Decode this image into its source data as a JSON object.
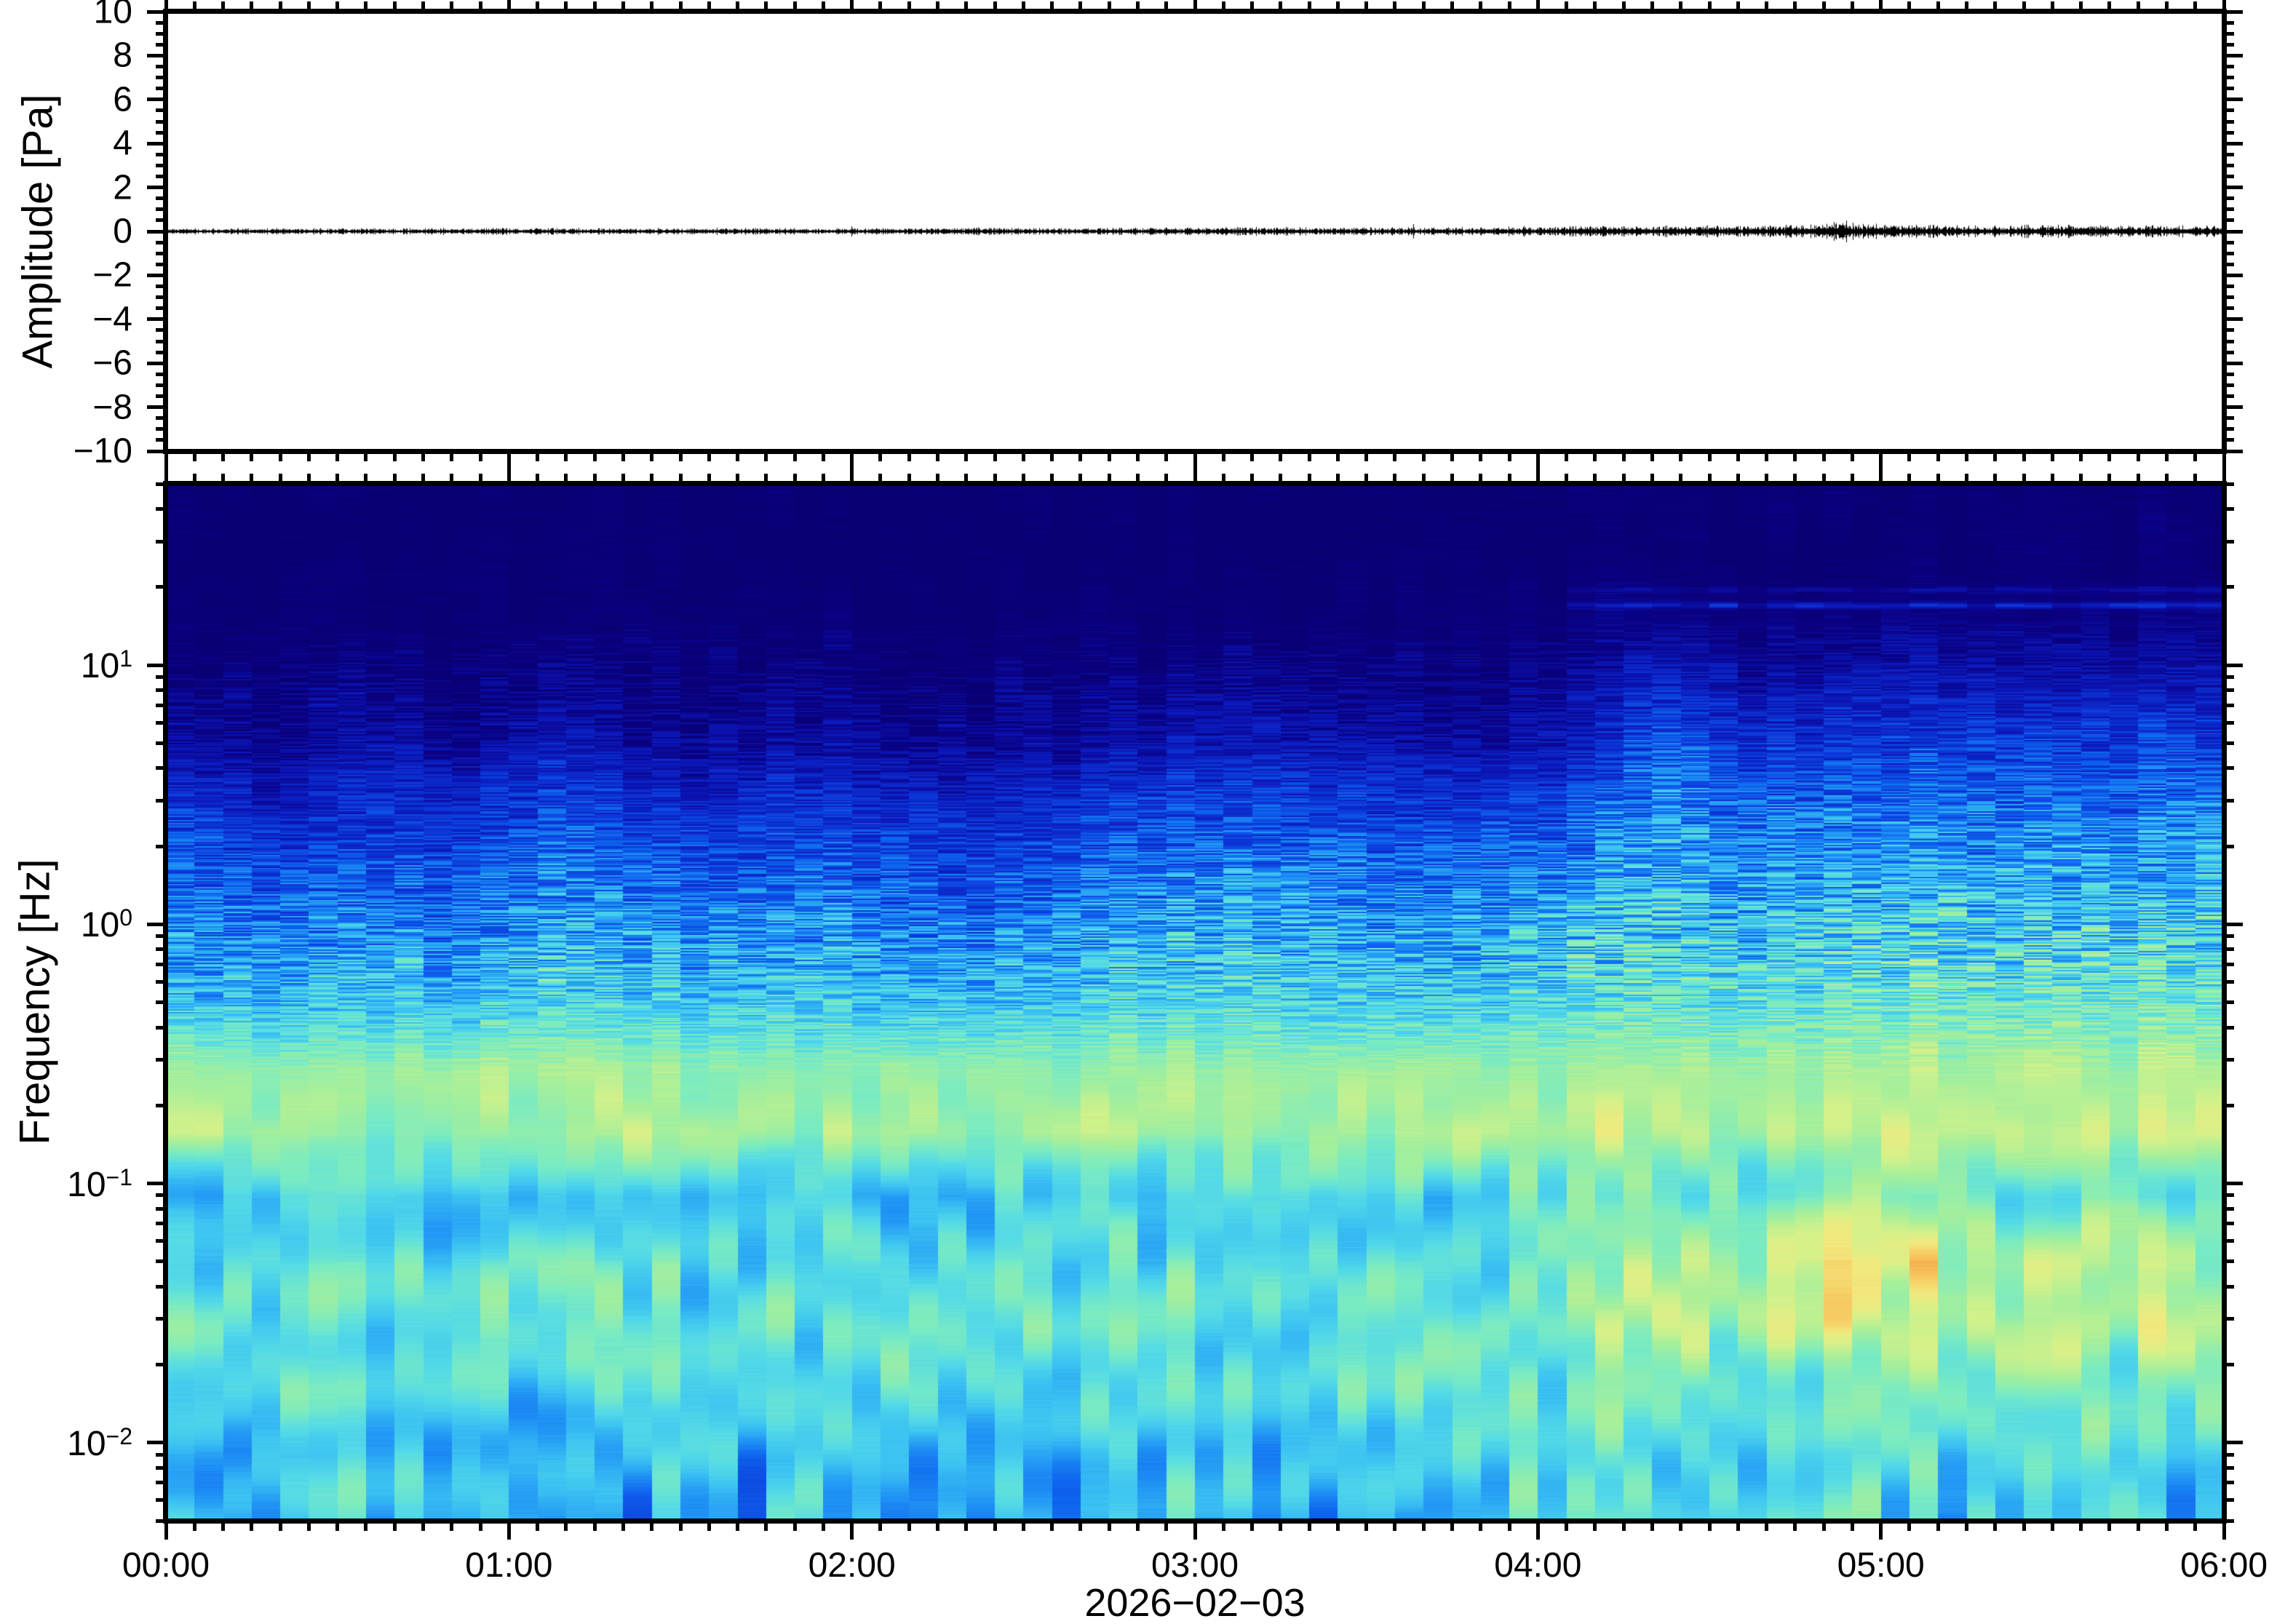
{
  "figure": {
    "top_panel": {
      "ylabel": "Amplitude [Pa]",
      "ylim": [
        -10,
        10
      ],
      "y_major_step": 2,
      "y_minor_step": 0.5,
      "y_tick_labels": [
        "10",
        "8",
        "6",
        "4",
        "2",
        "0",
        "−2",
        "−4",
        "−6",
        "−8",
        "−10"
      ]
    },
    "bottom_panel": {
      "ylabel": "Frequency [Hz]",
      "y_tick_base": "10",
      "y_tick_exponents": [
        "1",
        "0",
        "−1",
        "−2"
      ],
      "freq_range_hz": [
        0.005,
        50
      ]
    },
    "x_axis": {
      "tick_labels": [
        "00:00",
        "01:00",
        "02:00",
        "03:00",
        "04:00",
        "05:00",
        "06:00"
      ],
      "minor_step_minutes": 5,
      "date_label": "2026−02−03"
    }
  },
  "chart_data": [
    {
      "type": "line",
      "name": "pressure-waveform",
      "ylabel": "Amplitude [Pa]",
      "ylim": [
        -10,
        10
      ],
      "x_range_hours": [
        0,
        6
      ],
      "mean_pa": 0,
      "envelope_pa_15min": [
        0.07,
        0.08,
        0.07,
        0.08,
        0.08,
        0.07,
        0.08,
        0.07,
        0.08,
        0.09,
        0.08,
        0.09,
        0.1,
        0.1,
        0.09,
        0.1,
        0.12,
        0.14,
        0.13,
        0.2,
        0.16,
        0.13,
        0.16,
        0.14
      ],
      "bursts": [
        {
          "hour": 3.95,
          "peak_pa": 0.12
        },
        {
          "hour": 4.88,
          "peak_pa": 0.28
        },
        {
          "hour": 5.42,
          "peak_pa": 0.18
        }
      ],
      "line_color": "#000000"
    },
    {
      "type": "heatmap",
      "name": "spectrogram",
      "ylabel": "Frequency [Hz]",
      "xlabel": "2026−02−03",
      "x_range_hours": [
        0,
        6
      ],
      "freq_range_hz": [
        0.005,
        50
      ],
      "column_width_minutes": 5,
      "time_bin_hours": [
        0,
        0.25,
        0.5,
        0.75,
        1,
        1.25,
        1.5,
        1.75,
        2,
        2.25,
        2.5,
        2.75,
        3,
        3.25,
        3.5,
        3.75,
        4,
        4.25,
        4.5,
        4.75,
        5,
        5.25,
        5.5,
        5.75
      ],
      "freq_bands_hz": [
        0.005,
        0.009,
        0.016,
        0.028,
        0.05,
        0.089,
        0.158,
        0.28,
        0.5,
        0.89,
        1.58,
        2.8,
        5.0,
        8.9,
        15.8,
        28
      ],
      "power_scale": [
        0,
        10
      ],
      "power_grid": [
        [
          5.6,
          5.3,
          6.0,
          6.4,
          5.9,
          5.3,
          7.9,
          7.4,
          5.3,
          4.4,
          3.6,
          2.5,
          1.3,
          0.7,
          0.45,
          0.3
        ],
        [
          4.7,
          5.0,
          6.4,
          6.7,
          6.1,
          5.2,
          7.6,
          7.1,
          5.1,
          4.0,
          3.0,
          2.0,
          1.0,
          0.6,
          0.4,
          0.3
        ],
        [
          5.3,
          5.7,
          6.2,
          6.0,
          5.7,
          5.5,
          7.4,
          7.2,
          5.4,
          4.4,
          3.5,
          2.6,
          1.5,
          0.8,
          0.45,
          0.3
        ],
        [
          5.9,
          5.3,
          5.7,
          6.6,
          6.2,
          5.3,
          7.3,
          7.3,
          5.2,
          4.2,
          3.2,
          2.2,
          1.1,
          0.6,
          0.4,
          0.3
        ],
        [
          4.5,
          4.9,
          5.4,
          6.2,
          6.0,
          5.6,
          7.5,
          7.4,
          5.7,
          5.0,
          4.2,
          3.1,
          1.7,
          0.9,
          0.5,
          0.3
        ],
        [
          5.5,
          5.8,
          6.4,
          6.3,
          5.9,
          5.4,
          7.8,
          7.2,
          5.5,
          4.6,
          3.6,
          2.4,
          1.2,
          0.7,
          0.4,
          0.3
        ],
        [
          5.1,
          5.4,
          6.0,
          6.1,
          5.8,
          5.3,
          7.3,
          7.1,
          5.3,
          4.3,
          3.3,
          2.3,
          1.2,
          0.6,
          0.4,
          0.3
        ],
        [
          5.7,
          5.9,
          6.2,
          6.4,
          6.0,
          5.5,
          7.4,
          7.2,
          5.6,
          4.7,
          3.7,
          2.7,
          1.5,
          0.8,
          0.45,
          0.3
        ],
        [
          5.3,
          5.6,
          6.6,
          6.8,
          6.2,
          5.4,
          7.7,
          7.3,
          5.4,
          4.5,
          3.4,
          2.4,
          1.3,
          0.7,
          0.4,
          0.3
        ],
        [
          4.9,
          5.2,
          5.9,
          6.2,
          5.9,
          5.3,
          7.2,
          7.0,
          5.2,
          4.1,
          3.1,
          2.1,
          1.1,
          0.6,
          0.4,
          0.3
        ],
        [
          4.3,
          4.7,
          5.6,
          6.4,
          6.1,
          5.6,
          7.5,
          7.2,
          5.5,
          4.6,
          3.6,
          2.5,
          1.3,
          0.7,
          0.4,
          0.3
        ],
        [
          5.1,
          5.5,
          6.2,
          6.5,
          6.0,
          5.4,
          7.6,
          7.4,
          5.7,
          4.9,
          4.0,
          2.9,
          1.6,
          0.8,
          0.45,
          0.3
        ],
        [
          5.5,
          5.7,
          6.4,
          6.3,
          5.9,
          5.5,
          7.8,
          7.5,
          5.9,
          5.2,
          4.4,
          3.3,
          1.9,
          1.0,
          0.5,
          0.3
        ],
        [
          5.7,
          5.9,
          6.3,
          6.6,
          6.2,
          5.7,
          7.6,
          7.4,
          5.7,
          5.0,
          4.1,
          3.0,
          1.7,
          0.9,
          0.5,
          0.3
        ],
        [
          5.3,
          5.6,
          6.1,
          6.4,
          6.1,
          5.6,
          7.4,
          7.2,
          5.5,
          4.7,
          3.7,
          2.6,
          1.4,
          0.8,
          0.45,
          0.3
        ],
        [
          5.6,
          5.8,
          6.2,
          6.5,
          6.3,
          5.8,
          7.5,
          7.3,
          5.7,
          4.9,
          3.9,
          2.8,
          1.5,
          0.8,
          0.45,
          0.3
        ],
        [
          5.4,
          5.7,
          6.5,
          6.8,
          6.6,
          6.1,
          7.7,
          7.4,
          5.9,
          5.2,
          4.3,
          3.2,
          1.8,
          1.0,
          0.6,
          0.35
        ],
        [
          5.8,
          6.1,
          6.8,
          7.6,
          7.8,
          6.7,
          7.8,
          7.5,
          6.3,
          5.8,
          5.2,
          4.4,
          3.4,
          2.2,
          0.9,
          0.4
        ],
        [
          5.6,
          6.0,
          6.6,
          7.2,
          7.2,
          6.3,
          7.6,
          7.4,
          6.1,
          5.4,
          4.6,
          3.6,
          2.4,
          1.4,
          0.7,
          0.35
        ],
        [
          5.9,
          6.2,
          7.0,
          8.0,
          8.8,
          7.1,
          7.9,
          7.6,
          6.3,
          5.6,
          4.8,
          3.7,
          2.5,
          1.5,
          0.7,
          0.35
        ],
        [
          5.7,
          6.1,
          7.1,
          7.8,
          8.4,
          6.9,
          8.0,
          7.7,
          6.5,
          5.8,
          5.0,
          4.0,
          2.8,
          1.7,
          0.8,
          0.4
        ],
        [
          5.5,
          5.9,
          6.7,
          7.2,
          7.0,
          6.3,
          7.7,
          7.5,
          6.3,
          5.6,
          4.8,
          3.8,
          2.6,
          1.6,
          0.75,
          0.4
        ],
        [
          5.8,
          6.1,
          6.9,
          7.6,
          8.0,
          6.7,
          7.8,
          7.6,
          6.4,
          5.7,
          4.9,
          3.9,
          2.7,
          1.6,
          0.75,
          0.4
        ],
        [
          5.6,
          6.0,
          6.8,
          7.4,
          7.6,
          6.5,
          7.9,
          7.7,
          6.5,
          5.8,
          5.0,
          4.0,
          2.8,
          1.8,
          0.8,
          0.4
        ]
      ],
      "palette": [
        [
          0.0,
          "#07006B"
        ],
        [
          0.08,
          "#0A0080"
        ],
        [
          0.18,
          "#0B17B8"
        ],
        [
          0.28,
          "#0D3BDB"
        ],
        [
          0.36,
          "#0E63EE"
        ],
        [
          0.45,
          "#2196F5"
        ],
        [
          0.53,
          "#3CC3F2"
        ],
        [
          0.6,
          "#55DBE6"
        ],
        [
          0.67,
          "#79EBC3"
        ],
        [
          0.75,
          "#A6EF9B"
        ],
        [
          0.82,
          "#D6F189"
        ],
        [
          0.88,
          "#F2E97E"
        ],
        [
          0.94,
          "#F8C75F"
        ],
        [
          1.0,
          "#F59C41"
        ]
      ],
      "features": [
        "persistent yellow microbarom band near 0.2 Hz across all times",
        "mottled cyan/green energy below 0.1 Hz with sporadic deep-blue 5-min columns near 0.005-0.01 Hz",
        "episodic blue striated columns reaching 2-5 Hz before 04:00",
        "broadband brightening after 04:00 reaching ~10 Hz, strongest 04:10-04:30",
        "orange hotspots at 0.03-0.07 Hz near 04:45-05:05 and 05:30-05:50",
        "faint narrow tonal line near 17 Hz after about 04:05"
      ]
    }
  ]
}
